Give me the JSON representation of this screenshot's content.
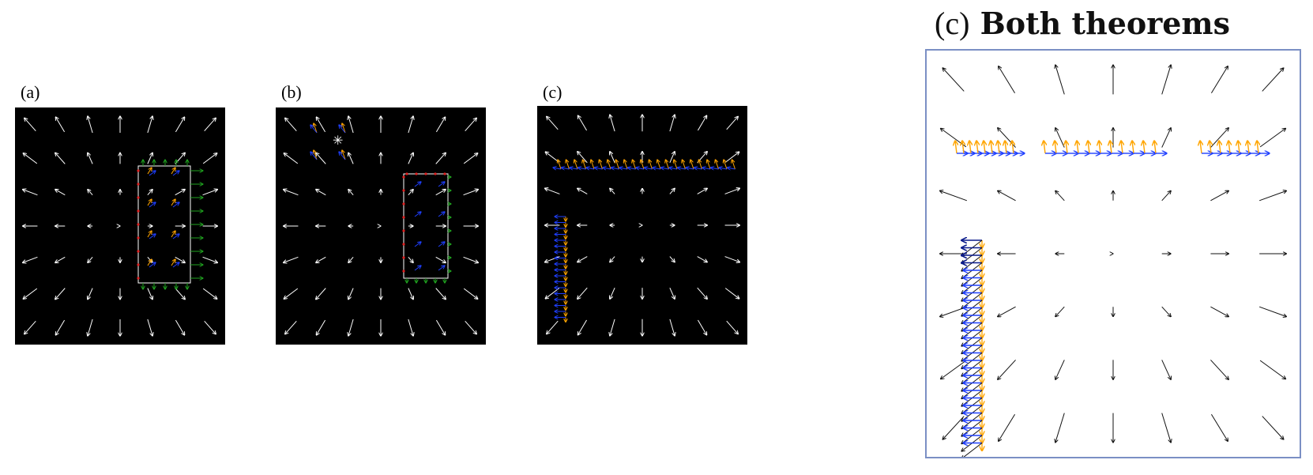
{
  "panels": {
    "a": {
      "label": "(a)"
    },
    "b": {
      "label": "(b)"
    },
    "c": {
      "label": "(c)"
    }
  },
  "big_panel": {
    "title_paren": "(c)",
    "title_text": "Both theorems"
  },
  "colors": {
    "panel_bg": "#000000",
    "field_arrow_dark_bg": "#ffffff",
    "field_arrow_light_bg": "#111111",
    "blue_arrow": "#1f3fff",
    "dark_blue_arrow": "#0a1a8c",
    "orange_arrow": "#ffa500",
    "red_marker": "#e02020",
    "green_arrow": "#1fa31f",
    "border": "#7b8fc4"
  },
  "icons": {
    "star_marker": "asterisk-icon"
  }
}
